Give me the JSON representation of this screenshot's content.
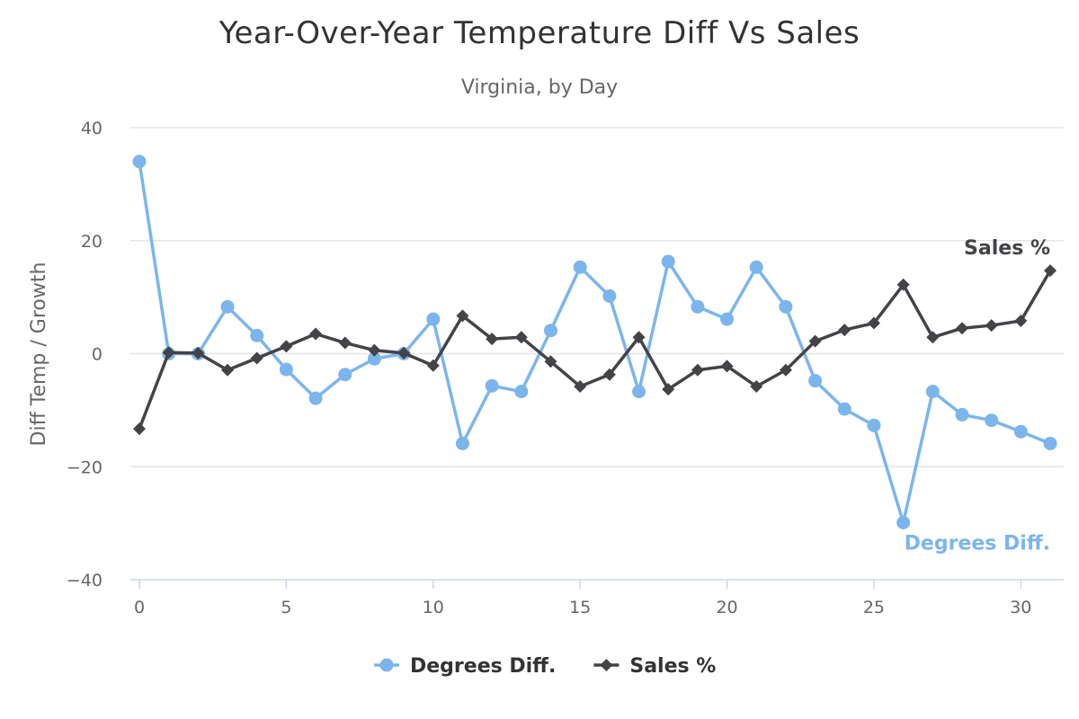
{
  "chart_data": {
    "type": "line",
    "title": "Year-Over-Year Temperature Diff Vs Sales",
    "subtitle": "Virginia, by Day",
    "xlabel": "",
    "ylabel": "Diff Temp / Growth",
    "xlim": [
      0,
      31
    ],
    "ylim": [
      -40,
      40
    ],
    "x_ticks": [
      0,
      5,
      10,
      15,
      20,
      25,
      30
    ],
    "y_ticks": [
      -40,
      -20,
      0,
      20,
      40
    ],
    "x": [
      0,
      1,
      2,
      3,
      4,
      5,
      6,
      7,
      8,
      9,
      10,
      11,
      12,
      13,
      14,
      15,
      16,
      17,
      18,
      19,
      20,
      21,
      22,
      23,
      24,
      25,
      26,
      27,
      28,
      29,
      30,
      31
    ],
    "series": [
      {
        "name": "Degrees Diff.",
        "color": "#7cb5ec",
        "marker": "circle",
        "end_label": "Degrees Diff.",
        "values": [
          34,
          0,
          0,
          8.3,
          3.2,
          -2.8,
          -7.9,
          -3.7,
          -0.9,
          0,
          6.1,
          -15.9,
          -5.7,
          -6.7,
          4.1,
          15.3,
          10.2,
          -6.7,
          16.3,
          8.3,
          6.1,
          15.3,
          8.3,
          -4.8,
          -9.8,
          -12.7,
          -29.9,
          -6.7,
          -10.8,
          -11.8,
          -13.8,
          -15.9
        ]
      },
      {
        "name": "Sales %",
        "color": "#434348",
        "marker": "diamond",
        "end_label": "Sales %",
        "values": [
          -13.3,
          0.2,
          0.1,
          -2.9,
          -0.8,
          1.3,
          3.5,
          1.9,
          0.6,
          0.1,
          -2.1,
          6.7,
          2.6,
          2.9,
          -1.4,
          -5.8,
          -3.7,
          2.9,
          -6.3,
          -2.9,
          -2.2,
          -5.8,
          -2.9,
          2.2,
          4.2,
          5.4,
          12.2,
          2.9,
          4.5,
          5,
          5.8,
          14.7
        ]
      }
    ],
    "legend": {
      "position": "bottom-center",
      "items": [
        "Degrees Diff.",
        "Sales %"
      ]
    }
  }
}
